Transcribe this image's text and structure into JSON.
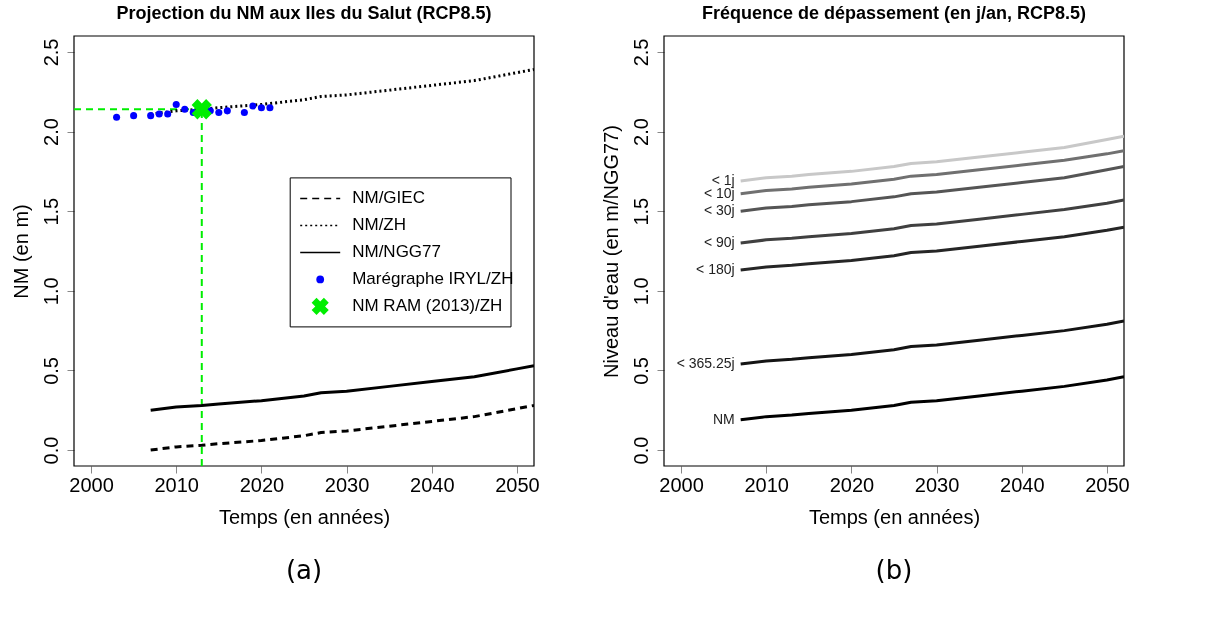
{
  "chart_data": [
    {
      "type": "line",
      "title": "Projection du NM aux Iles du Salut (RCP8.5)",
      "xlabel": "Temps (en années)",
      "ylabel": "NM (en m)",
      "xlim": [
        1998,
        2052
      ],
      "xticks": [
        2000,
        2010,
        2020,
        2030,
        2040,
        2050
      ],
      "ylim": [
        -0.1,
        2.6
      ],
      "yticks": [
        {
          "value": 0,
          "label": "0.0"
        },
        0.5,
        {
          "value": 1,
          "label": "1.0"
        },
        1.5,
        {
          "value": 2,
          "label": "2.0"
        },
        2.5
      ],
      "grid": false,
      "legend": "right",
      "series": [
        {
          "name": "NM/GIEC",
          "type": "line",
          "line_style": "dashed",
          "color": "#000000",
          "x": [
            2007,
            2010,
            2013,
            2015,
            2020,
            2025,
            2027,
            2030,
            2035,
            2040,
            2045,
            2050,
            2052
          ],
          "values": [
            0.0,
            0.02,
            0.03,
            0.04,
            0.06,
            0.09,
            0.11,
            0.12,
            0.15,
            0.18,
            0.21,
            0.26,
            0.28
          ]
        },
        {
          "name": "NM/ZH",
          "type": "line",
          "line_style": "dotted",
          "color": "#000000",
          "x": [
            2007,
            2010,
            2013,
            2015,
            2020,
            2025,
            2027,
            2030,
            2035,
            2040,
            2045,
            2050,
            2052
          ],
          "values": [
            2.11,
            2.13,
            2.14,
            2.15,
            2.17,
            2.2,
            2.22,
            2.23,
            2.26,
            2.29,
            2.32,
            2.37,
            2.39
          ]
        },
        {
          "name": "NM/NGG77",
          "type": "line",
          "line_style": "solid",
          "color": "#000000",
          "x": [
            2007,
            2010,
            2013,
            2015,
            2020,
            2025,
            2027,
            2030,
            2035,
            2040,
            2045,
            2050,
            2052
          ],
          "values": [
            0.25,
            0.27,
            0.28,
            0.29,
            0.31,
            0.34,
            0.36,
            0.37,
            0.4,
            0.43,
            0.46,
            0.51,
            0.53
          ]
        },
        {
          "name": "Marégraphe IRYL/ZH",
          "type": "scatter",
          "marker": "circle",
          "color": "#0000ff",
          "x": [
            2003,
            2005,
            2007,
            2008,
            2009,
            2010,
            2011,
            2012,
            2014,
            2015,
            2016,
            2018,
            2019,
            2020,
            2021
          ],
          "values": [
            2.09,
            2.1,
            2.1,
            2.11,
            2.11,
            2.17,
            2.14,
            2.12,
            2.13,
            2.12,
            2.13,
            2.12,
            2.16,
            2.15,
            2.15
          ]
        },
        {
          "name": "NM RAM (2013)/ZH",
          "type": "scatter",
          "marker": "cross",
          "color": "#00ee00",
          "x": [
            2013
          ],
          "values": [
            2.14
          ]
        }
      ],
      "ref_lines": [
        {
          "axis": "y",
          "value": 2.14,
          "color": "#00ee00",
          "line_style": "dashed"
        },
        {
          "axis": "x",
          "value": 2013,
          "color": "#00ee00",
          "line_style": "dashed"
        }
      ],
      "annotations": [
        "(a)"
      ]
    },
    {
      "type": "line",
      "title": "Fréquence de dépassement (en j/an, RCP8.5)",
      "xlabel": "Temps (en années)",
      "ylabel": "Niveau d'eau (en m/NGG77)",
      "xlim": [
        1998,
        2052
      ],
      "xticks": [
        2000,
        2010,
        2020,
        2030,
        2040,
        2050
      ],
      "ylim": [
        -0.1,
        2.6
      ],
      "yticks": [
        {
          "value": 0,
          "label": "0.0"
        },
        0.5,
        {
          "value": 1,
          "label": "1.0"
        },
        1.5,
        {
          "value": 2,
          "label": "2.0"
        },
        2.5
      ],
      "grid": false,
      "x": [
        2007,
        2010,
        2013,
        2015,
        2020,
        2025,
        2027,
        2030,
        2035,
        2040,
        2045,
        2050,
        2052
      ],
      "series": [
        {
          "name": "< 1j",
          "color": "#c8c8c8",
          "values": [
            1.69,
            1.71,
            1.72,
            1.73,
            1.75,
            1.78,
            1.8,
            1.81,
            1.84,
            1.87,
            1.9,
            1.95,
            1.97
          ]
        },
        {
          "name": "< 10j",
          "color": "#707070",
          "values": [
            1.61,
            1.63,
            1.64,
            1.65,
            1.67,
            1.7,
            1.72,
            1.73,
            1.76,
            1.79,
            1.82,
            1.86,
            1.88
          ]
        },
        {
          "name": "< 30j",
          "color": "#555555",
          "values": [
            1.5,
            1.52,
            1.53,
            1.54,
            1.56,
            1.59,
            1.61,
            1.62,
            1.65,
            1.68,
            1.71,
            1.76,
            1.78
          ]
        },
        {
          "name": "< 90j",
          "color": "#404040",
          "values": [
            1.3,
            1.32,
            1.33,
            1.34,
            1.36,
            1.39,
            1.41,
            1.42,
            1.45,
            1.48,
            1.51,
            1.55,
            1.57
          ]
        },
        {
          "name": "< 180j",
          "color": "#262626",
          "values": [
            1.13,
            1.15,
            1.16,
            1.17,
            1.19,
            1.22,
            1.24,
            1.25,
            1.28,
            1.31,
            1.34,
            1.38,
            1.4
          ]
        },
        {
          "name": "< 365.25j",
          "color": "#141414",
          "values": [
            0.54,
            0.56,
            0.57,
            0.58,
            0.6,
            0.63,
            0.65,
            0.66,
            0.69,
            0.72,
            0.75,
            0.79,
            0.81
          ]
        },
        {
          "name": "NM",
          "color": "#000000",
          "values": [
            0.19,
            0.21,
            0.22,
            0.23,
            0.25,
            0.28,
            0.3,
            0.31,
            0.34,
            0.37,
            0.4,
            0.44,
            0.46
          ]
        }
      ],
      "annotations": [
        "(b)"
      ]
    }
  ]
}
